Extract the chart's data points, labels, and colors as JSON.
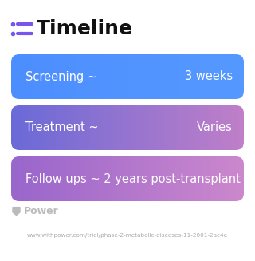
{
  "title": "Timeline",
  "background_color": "#ffffff",
  "title_color": "#111111",
  "title_fontsize": 18,
  "icon_color": "#7755ee",
  "rows": [
    {
      "left_text": "Screening ~",
      "right_text": "3 weeks",
      "gradient_start": "#4d8eff",
      "gradient_end": "#5599ff",
      "text_color": "#ffffff",
      "fontsize": 10.5
    },
    {
      "left_text": "Treatment ~",
      "right_text": "Varies",
      "gradient_start": "#6a6ad8",
      "gradient_end": "#c07fc8",
      "text_color": "#ffffff",
      "fontsize": 10.5
    },
    {
      "left_text": "Follow ups ~ 2 years post-transplant",
      "right_text": "",
      "gradient_start": "#9966cc",
      "gradient_end": "#cc88cc",
      "text_color": "#ffffff",
      "fontsize": 10.5
    }
  ],
  "footer_logo_text": "Power",
  "footer_logo_color": "#bbbbbb",
  "footer_url": "www.withpower.com/trial/phase-2-metabolic-diseases-11-2001-2ac4e",
  "footer_url_color": "#aaaaaa",
  "footer_fontsize": 5.2
}
